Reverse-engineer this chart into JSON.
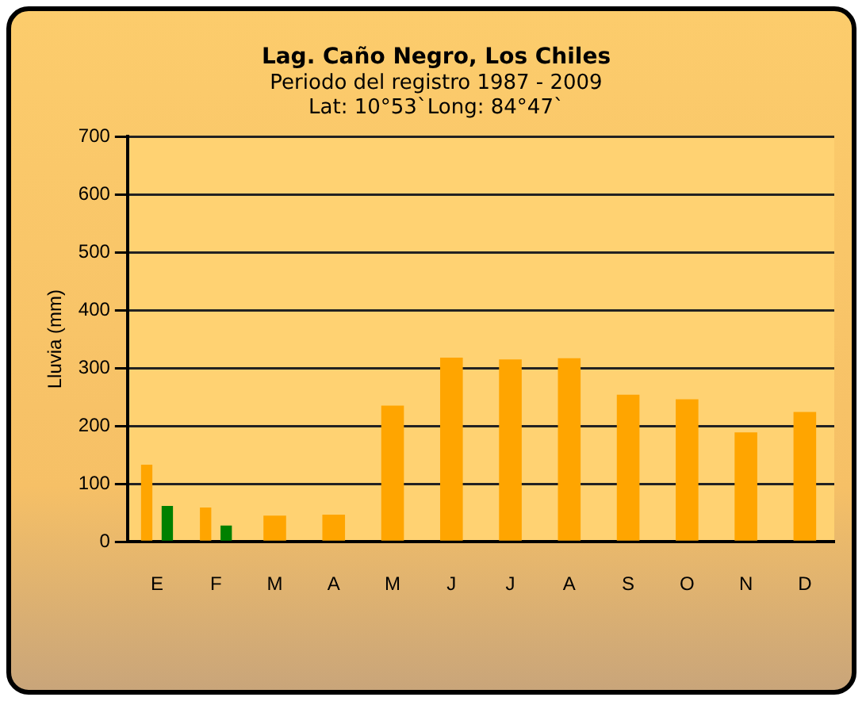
{
  "chart_data": {
    "type": "bar",
    "title": "Lag. Caño Negro, Los Chiles",
    "subtitle": "Periodo del registro 1987 - 2009\nLat: 10°53`Long: 84°47`",
    "ylabel": "Lluvia (mm)",
    "categories": [
      "E",
      "F",
      "M",
      "A",
      "M",
      "J",
      "J",
      "A",
      "S",
      "O",
      "N",
      "D"
    ],
    "series": [
      {
        "color": "#ffa500",
        "values": [
          133,
          59,
          45,
          47,
          235,
          318,
          315,
          317,
          254,
          246,
          189,
          224
        ]
      },
      {
        "color": "#008000",
        "values": [
          62,
          28,
          null,
          null,
          null,
          null,
          null,
          null,
          null,
          null,
          null,
          null
        ]
      }
    ],
    "ylim": [
      0,
      700
    ],
    "yticks": [
      0,
      100,
      200,
      300,
      400,
      500,
      600,
      700
    ],
    "grid": "y",
    "legend": false
  }
}
